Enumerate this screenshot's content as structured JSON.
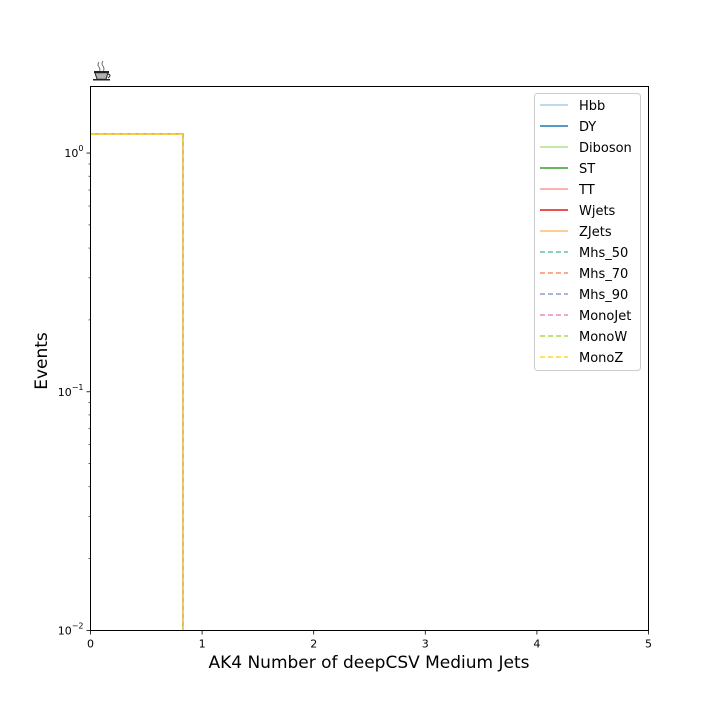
{
  "chart_data": {
    "type": "line",
    "drawstyle": "steps",
    "xlabel": "AK4 Number of deepCSV Medium Jets",
    "ylabel": "Events",
    "xlim": [
      0,
      5
    ],
    "ylim": [
      0.01,
      1.9
    ],
    "yscale": "log",
    "grid": false,
    "legend_position": "top-right",
    "x_ticks": [
      "0",
      "1",
      "2",
      "3",
      "4",
      "5"
    ],
    "y_ticks": [
      {
        "value": 1,
        "base": "10",
        "exp": "0"
      },
      {
        "value": 0.1,
        "base": "10",
        "exp": "−1"
      },
      {
        "value": 0.01,
        "base": "10",
        "exp": "−2"
      }
    ],
    "bins": [
      [
        0,
        0.83
      ]
    ],
    "series": [
      {
        "name": "Hbb",
        "values": [
          1.2
        ],
        "color": "#a6cee3",
        "dashed": false
      },
      {
        "name": "DY",
        "values": [
          1.2
        ],
        "color": "#1f78b4",
        "dashed": false
      },
      {
        "name": "Diboson",
        "values": [
          1.2
        ],
        "color": "#b2df8a",
        "dashed": false
      },
      {
        "name": "ST",
        "values": [
          1.2
        ],
        "color": "#33a02c",
        "dashed": false
      },
      {
        "name": "TT",
        "values": [
          1.2
        ],
        "color": "#fb9a99",
        "dashed": false
      },
      {
        "name": "Wjets",
        "values": [
          1.2
        ],
        "color": "#e31a1c",
        "dashed": false
      },
      {
        "name": "ZJets",
        "values": [
          1.2
        ],
        "color": "#fdbf6f",
        "dashed": false
      },
      {
        "name": "Mhs_50",
        "values": [
          1.2
        ],
        "color": "#66c2a5",
        "dashed": true
      },
      {
        "name": "Mhs_70",
        "values": [
          1.2
        ],
        "color": "#fc8d62",
        "dashed": true
      },
      {
        "name": "Mhs_90",
        "values": [
          1.2
        ],
        "color": "#8da0cb",
        "dashed": true
      },
      {
        "name": "MonoJet",
        "values": [
          1.2
        ],
        "color": "#e78ac3",
        "dashed": true
      },
      {
        "name": "MonoW",
        "values": [
          1.2
        ],
        "color": "#a6d854",
        "dashed": true
      },
      {
        "name": "MonoZ",
        "values": [
          1.2
        ],
        "color": "#ffd92f",
        "dashed": true
      }
    ]
  }
}
